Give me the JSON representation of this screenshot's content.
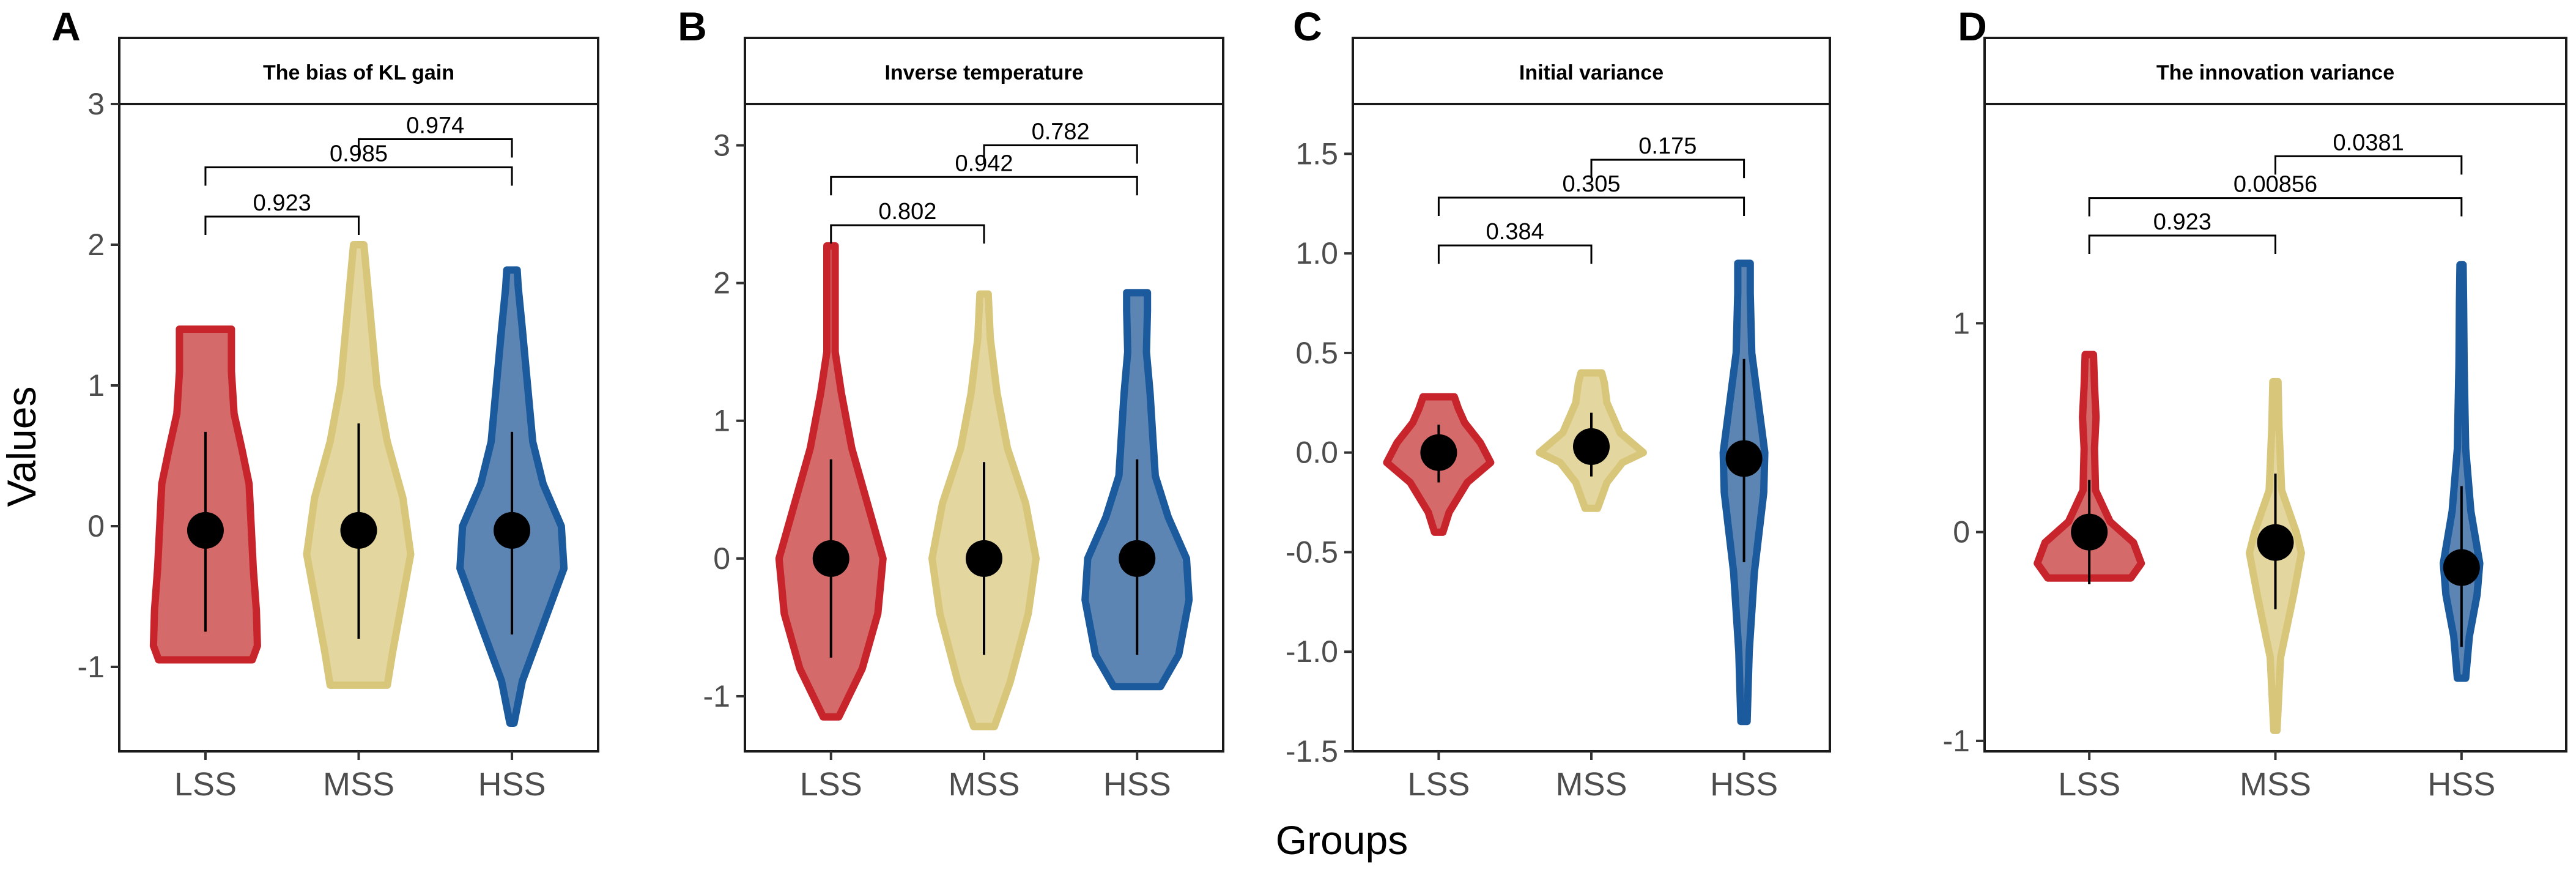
{
  "chart_data": [
    {
      "type": "violin",
      "panel": "A",
      "title": "The bias of KL gain",
      "xlabel": "Groups",
      "ylabel": "Values",
      "ylim": [
        -1.6,
        3.0
      ],
      "yticks": [
        -1,
        0,
        1,
        2,
        3
      ],
      "ytick_labels": [
        "-1",
        "0",
        "1",
        "2",
        "3"
      ],
      "categories": [
        "LSS",
        "MSS",
        "HSS"
      ],
      "series": [
        {
          "name": "LSS",
          "color": "#c8242b",
          "fill": "#d46a6a",
          "mean": -0.03,
          "ci": [
            -0.75,
            0.67
          ],
          "range": [
            -0.95,
            1.4
          ],
          "density": [
            [
              -0.95,
              0.9
            ],
            [
              -0.85,
              1.0
            ],
            [
              -0.6,
              0.98
            ],
            [
              -0.3,
              0.92
            ],
            [
              0.0,
              0.88
            ],
            [
              0.3,
              0.84
            ],
            [
              0.55,
              0.7
            ],
            [
              0.8,
              0.55
            ],
            [
              1.1,
              0.5
            ],
            [
              1.3,
              0.5
            ],
            [
              1.4,
              0.5
            ]
          ]
        },
        {
          "name": "MSS",
          "color": "#d8c77a",
          "fill": "#e3d79f",
          "mean": -0.03,
          "ci": [
            -0.8,
            0.73
          ],
          "range": [
            -1.13,
            2.0
          ],
          "density": [
            [
              -1.13,
              0.55
            ],
            [
              -0.9,
              0.65
            ],
            [
              -0.5,
              0.85
            ],
            [
              -0.2,
              1.0
            ],
            [
              0.2,
              0.85
            ],
            [
              0.6,
              0.55
            ],
            [
              1.0,
              0.35
            ],
            [
              1.4,
              0.25
            ],
            [
              1.8,
              0.15
            ],
            [
              2.0,
              0.1
            ]
          ]
        },
        {
          "name": "HSS",
          "color": "#1b5a9c",
          "fill": "#5d85b3",
          "mean": -0.03,
          "ci": [
            -0.77,
            0.67
          ],
          "range": [
            -1.4,
            1.82
          ],
          "density": [
            [
              -1.4,
              0.04
            ],
            [
              -1.1,
              0.2
            ],
            [
              -0.7,
              0.6
            ],
            [
              -0.3,
              1.0
            ],
            [
              0.0,
              0.95
            ],
            [
              0.3,
              0.6
            ],
            [
              0.6,
              0.4
            ],
            [
              1.0,
              0.3
            ],
            [
              1.4,
              0.2
            ],
            [
              1.7,
              0.12
            ],
            [
              1.82,
              0.1
            ]
          ]
        }
      ],
      "comparisons": [
        {
          "groups": [
            "LSS",
            "MSS"
          ],
          "p": "0.923",
          "y": 2.2
        },
        {
          "groups": [
            "LSS",
            "HSS"
          ],
          "p": "0.985",
          "y": 2.55
        },
        {
          "groups": [
            "MSS",
            "HSS"
          ],
          "p": "0.974",
          "y": 2.75
        }
      ]
    },
    {
      "type": "violin",
      "panel": "B",
      "title": "Inverse temperature",
      "xlabel": "Groups",
      "ylabel": "Values",
      "ylim": [
        -1.4,
        3.3
      ],
      "yticks": [
        -1,
        0,
        1,
        2,
        3
      ],
      "ytick_labels": [
        "-1",
        "0",
        "1",
        "2",
        "3"
      ],
      "categories": [
        "LSS",
        "MSS",
        "HSS"
      ],
      "series": [
        {
          "name": "LSS",
          "color": "#c8242b",
          "fill": "#d46a6a",
          "mean": 0.0,
          "ci": [
            -0.72,
            0.72
          ],
          "range": [
            -1.15,
            2.27
          ],
          "density": [
            [
              -1.15,
              0.15
            ],
            [
              -0.8,
              0.6
            ],
            [
              -0.4,
              0.9
            ],
            [
              0.0,
              1.0
            ],
            [
              0.4,
              0.7
            ],
            [
              0.8,
              0.4
            ],
            [
              1.2,
              0.2
            ],
            [
              1.5,
              0.08
            ],
            [
              1.8,
              0.08
            ],
            [
              2.1,
              0.08
            ],
            [
              2.27,
              0.08
            ]
          ]
        },
        {
          "name": "MSS",
          "color": "#d8c77a",
          "fill": "#e3d79f",
          "mean": 0.0,
          "ci": [
            -0.7,
            0.7
          ],
          "range": [
            -1.22,
            1.92
          ],
          "density": [
            [
              -1.22,
              0.2
            ],
            [
              -0.9,
              0.5
            ],
            [
              -0.4,
              0.85
            ],
            [
              0.0,
              1.0
            ],
            [
              0.4,
              0.8
            ],
            [
              0.8,
              0.45
            ],
            [
              1.2,
              0.25
            ],
            [
              1.6,
              0.12
            ],
            [
              1.92,
              0.08
            ]
          ]
        },
        {
          "name": "HSS",
          "color": "#1b5a9c",
          "fill": "#5d85b3",
          "mean": 0.0,
          "ci": [
            -0.7,
            0.72
          ],
          "range": [
            -0.93,
            1.93
          ],
          "density": [
            [
              -0.93,
              0.45
            ],
            [
              -0.7,
              0.8
            ],
            [
              -0.3,
              1.0
            ],
            [
              0.0,
              0.95
            ],
            [
              0.3,
              0.6
            ],
            [
              0.6,
              0.35
            ],
            [
              0.9,
              0.3
            ],
            [
              1.2,
              0.25
            ],
            [
              1.5,
              0.18
            ],
            [
              1.8,
              0.2
            ],
            [
              1.93,
              0.2
            ]
          ]
        }
      ],
      "comparisons": [
        {
          "groups": [
            "LSS",
            "MSS"
          ],
          "p": "0.802",
          "y": 2.42
        },
        {
          "groups": [
            "LSS",
            "HSS"
          ],
          "p": "0.942",
          "y": 2.77
        },
        {
          "groups": [
            "MSS",
            "HSS"
          ],
          "p": "0.782",
          "y": 3.0
        }
      ]
    },
    {
      "type": "violin",
      "panel": "C",
      "title": "Initial variance",
      "xlabel": "Groups",
      "ylabel": "Values",
      "ylim": [
        -1.5,
        1.75
      ],
      "yticks": [
        -1.5,
        -1.0,
        -0.5,
        0.0,
        0.5,
        1.0,
        1.5
      ],
      "ytick_labels": [
        "-1.5",
        "-1.0",
        "-0.5",
        "0.0",
        "0.5",
        "1.0",
        "1.5"
      ],
      "categories": [
        "LSS",
        "MSS",
        "HSS"
      ],
      "series": [
        {
          "name": "LSS",
          "color": "#c8242b",
          "fill": "#d46a6a",
          "mean": 0.0,
          "ci": [
            -0.15,
            0.14
          ],
          "range": [
            -0.4,
            0.28
          ],
          "density": [
            [
              -0.4,
              0.08
            ],
            [
              -0.3,
              0.2
            ],
            [
              -0.15,
              0.55
            ],
            [
              -0.05,
              1.0
            ],
            [
              0.05,
              0.8
            ],
            [
              0.15,
              0.5
            ],
            [
              0.22,
              0.38
            ],
            [
              0.28,
              0.3
            ]
          ]
        },
        {
          "name": "MSS",
          "color": "#d8c77a",
          "fill": "#e3d79f",
          "mean": 0.03,
          "ci": [
            -0.12,
            0.2
          ],
          "range": [
            -0.28,
            0.4
          ],
          "density": [
            [
              -0.28,
              0.12
            ],
            [
              -0.15,
              0.3
            ],
            [
              -0.05,
              0.6
            ],
            [
              0.0,
              1.0
            ],
            [
              0.1,
              0.55
            ],
            [
              0.25,
              0.3
            ],
            [
              0.35,
              0.25
            ],
            [
              0.4,
              0.2
            ]
          ]
        },
        {
          "name": "HSS",
          "color": "#1b5a9c",
          "fill": "#5d85b3",
          "mean": -0.03,
          "ci": [
            -0.55,
            0.47
          ],
          "range": [
            -1.35,
            0.95
          ],
          "density": [
            [
              -1.35,
              0.06
            ],
            [
              -1.0,
              0.1
            ],
            [
              -0.6,
              0.2
            ],
            [
              -0.2,
              0.38
            ],
            [
              0.0,
              0.4
            ],
            [
              0.2,
              0.3
            ],
            [
              0.5,
              0.15
            ],
            [
              0.8,
              0.12
            ],
            [
              0.95,
              0.12
            ]
          ]
        }
      ],
      "comparisons": [
        {
          "groups": [
            "LSS",
            "MSS"
          ],
          "p": "0.384",
          "y": 1.04
        },
        {
          "groups": [
            "LSS",
            "HSS"
          ],
          "p": "0.305",
          "y": 1.28
        },
        {
          "groups": [
            "MSS",
            "HSS"
          ],
          "p": "0.175",
          "y": 1.47
        }
      ]
    },
    {
      "type": "violin",
      "panel": "D",
      "title": "The innovation variance",
      "xlabel": "Groups",
      "ylabel": "Values",
      "ylim": [
        -1.05,
        2.05
      ],
      "yticks": [
        -1,
        0,
        1
      ],
      "ytick_labels": [
        "-1",
        "0",
        "1"
      ],
      "categories": [
        "LSS",
        "MSS",
        "HSS"
      ],
      "series": [
        {
          "name": "LSS",
          "color": "#c8242b",
          "fill": "#d46a6a",
          "mean": 0.0,
          "ci": [
            -0.25,
            0.25
          ],
          "range": [
            -0.22,
            0.85
          ],
          "density": [
            [
              -0.22,
              0.8
            ],
            [
              -0.15,
              1.0
            ],
            [
              -0.05,
              0.85
            ],
            [
              0.05,
              0.4
            ],
            [
              0.2,
              0.12
            ],
            [
              0.4,
              0.1
            ],
            [
              0.55,
              0.13
            ],
            [
              0.7,
              0.1
            ],
            [
              0.85,
              0.08
            ]
          ]
        },
        {
          "name": "MSS",
          "color": "#d8c77a",
          "fill": "#e3d79f",
          "mean": -0.05,
          "ci": [
            -0.37,
            0.28
          ],
          "range": [
            -0.95,
            0.72
          ],
          "density": [
            [
              -0.95,
              0.03
            ],
            [
              -0.6,
              0.1
            ],
            [
              -0.3,
              0.35
            ],
            [
              -0.1,
              0.5
            ],
            [
              0.0,
              0.4
            ],
            [
              0.2,
              0.12
            ],
            [
              0.5,
              0.07
            ],
            [
              0.72,
              0.05
            ]
          ]
        },
        {
          "name": "HSS",
          "color": "#1b5a9c",
          "fill": "#5d85b3",
          "mean": -0.17,
          "ci": [
            -0.55,
            0.22
          ],
          "range": [
            -0.7,
            1.28
          ],
          "density": [
            [
              -0.7,
              0.08
            ],
            [
              -0.5,
              0.15
            ],
            [
              -0.3,
              0.3
            ],
            [
              -0.15,
              0.35
            ],
            [
              0.1,
              0.18
            ],
            [
              0.4,
              0.08
            ],
            [
              0.8,
              0.05
            ],
            [
              1.1,
              0.04
            ],
            [
              1.28,
              0.03
            ]
          ]
        }
      ],
      "comparisons": [
        {
          "groups": [
            "LSS",
            "MSS"
          ],
          "p": "0.923",
          "y": 1.42
        },
        {
          "groups": [
            "LSS",
            "HSS"
          ],
          "p": "0.00856",
          "y": 1.6
        },
        {
          "groups": [
            "MSS",
            "HSS"
          ],
          "p": "0.0381",
          "y": 1.8
        }
      ]
    }
  ]
}
